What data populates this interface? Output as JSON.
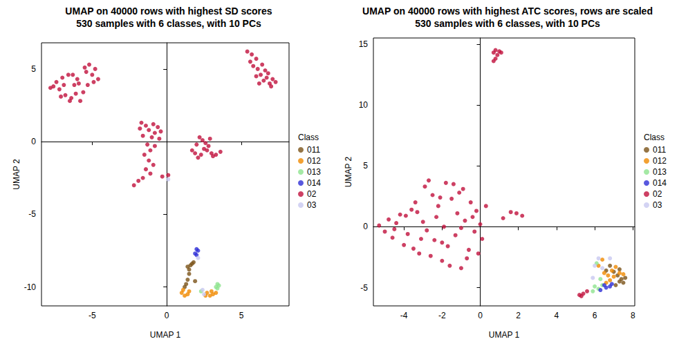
{
  "chart_data": [
    {
      "type": "scatter",
      "title": "UMAP on 40000 rows with highest SD scores",
      "subtitle": "530 samples with 6 classes, with 10 PCs",
      "x_label": "UMAP 1",
      "y_label": "UMAP 2",
      "legend_title": "Class",
      "legend": "right",
      "grid": false,
      "marker": "circle",
      "xlim": [
        -8.4,
        8.2
      ],
      "xticks": [
        -5,
        0,
        5
      ],
      "ylim": [
        -11.3,
        6.8
      ],
      "yticks": [
        -10,
        -5,
        0,
        5
      ],
      "series": [
        {
          "name": "011",
          "color": "#7a5218",
          "values": [
            [
              1.4,
              -8.6
            ],
            [
              1.5,
              -8.8
            ],
            [
              1.6,
              -8.5
            ],
            [
              1.5,
              -9.1
            ],
            [
              1.4,
              -9.5
            ],
            [
              1.3,
              -9.8
            ],
            [
              1.2,
              -10.0
            ],
            [
              1.7,
              -8.4
            ],
            [
              1.9,
              -9.6
            ],
            [
              1.8,
              -8.3
            ]
          ]
        },
        {
          "name": "012",
          "color": "#f08a00",
          "values": [
            [
              1.0,
              -10.4
            ],
            [
              1.2,
              -10.6
            ],
            [
              1.4,
              -10.5
            ],
            [
              1.1,
              -10.2
            ],
            [
              2.7,
              -10.4
            ],
            [
              2.9,
              -10.6
            ],
            [
              3.1,
              -10.5
            ],
            [
              3.3,
              -10.4
            ],
            [
              2.6,
              -10.6
            ],
            [
              3.0,
              -10.3
            ],
            [
              1.5,
              -10.3
            ]
          ]
        },
        {
          "name": "013",
          "color": "#8fe38f",
          "values": [
            [
              3.4,
              -9.8
            ],
            [
              3.5,
              -9.9
            ],
            [
              3.3,
              -10.0
            ],
            [
              2.3,
              -10.3
            ],
            [
              3.4,
              -10.1
            ]
          ]
        },
        {
          "name": "014",
          "color": "#2e2ed6",
          "values": [
            [
              2.0,
              -7.4
            ],
            [
              2.1,
              -7.5
            ],
            [
              1.9,
              -7.7
            ],
            [
              2.0,
              -7.8
            ]
          ]
        },
        {
          "name": "02",
          "color": "#c0103c",
          "values": [
            [
              -7.6,
              3.8
            ],
            [
              -7.4,
              4.1
            ],
            [
              -7.2,
              3.6
            ],
            [
              -7.0,
              4.4
            ],
            [
              -6.8,
              3.2
            ],
            [
              -6.6,
              4.6
            ],
            [
              -6.4,
              3.0
            ],
            [
              -6.2,
              3.9
            ],
            [
              -6.0,
              4.3
            ],
            [
              -5.8,
              2.8
            ],
            [
              -5.6,
              3.4
            ],
            [
              -5.4,
              4.8
            ],
            [
              -5.2,
              5.3
            ],
            [
              -5.0,
              4.6
            ],
            [
              -4.8,
              5.0
            ],
            [
              -4.6,
              4.3
            ],
            [
              -5.9,
              4.0
            ],
            [
              -6.9,
              3.9
            ],
            [
              -7.8,
              3.7
            ],
            [
              -6.5,
              2.8
            ],
            [
              -5.3,
              3.9
            ],
            [
              -4.9,
              4.1
            ],
            [
              -6.3,
              4.6
            ],
            [
              -7.1,
              3.1
            ],
            [
              -5.5,
              5.1
            ],
            [
              -6.1,
              3.3
            ],
            [
              5.4,
              6.2
            ],
            [
              5.7,
              6.0
            ],
            [
              6.0,
              5.7
            ],
            [
              5.8,
              5.2
            ],
            [
              6.1,
              5.0
            ],
            [
              6.3,
              4.6
            ],
            [
              6.5,
              4.2
            ],
            [
              6.7,
              4.4
            ],
            [
              6.9,
              4.0
            ],
            [
              7.1,
              4.3
            ],
            [
              7.3,
              4.1
            ],
            [
              6.4,
              5.3
            ],
            [
              6.6,
              4.9
            ],
            [
              6.2,
              4.0
            ],
            [
              5.6,
              5.5
            ],
            [
              6.8,
              4.7
            ],
            [
              7.0,
              3.8
            ],
            [
              6.0,
              4.5
            ],
            [
              -1.7,
              1.3
            ],
            [
              -1.4,
              1.1
            ],
            [
              -1.2,
              0.8
            ],
            [
              -0.9,
              1.2
            ],
            [
              -0.6,
              1.0
            ],
            [
              -0.4,
              0.7
            ],
            [
              -1.6,
              0.4
            ],
            [
              -1.0,
              0.3
            ],
            [
              -0.5,
              0.2
            ],
            [
              -1.3,
              -0.2
            ],
            [
              -1.1,
              -0.6
            ],
            [
              -0.8,
              -0.3
            ],
            [
              -1.5,
              -0.9
            ],
            [
              -1.2,
              -1.3
            ],
            [
              -0.9,
              -1.6
            ],
            [
              -1.4,
              -1.9
            ],
            [
              -1.1,
              -2.2
            ],
            [
              -1.6,
              -2.5
            ],
            [
              -2.2,
              -3.0
            ],
            [
              -1.9,
              -2.7
            ],
            [
              -0.3,
              -2.4
            ],
            [
              0.1,
              -2.3
            ],
            [
              -0.8,
              0.6
            ],
            [
              -1.8,
              0.9
            ],
            [
              1.7,
              -0.6
            ],
            [
              2.0,
              -0.2
            ],
            [
              2.2,
              0.3
            ],
            [
              2.4,
              0.1
            ],
            [
              2.6,
              -0.1
            ],
            [
              2.5,
              -0.5
            ],
            [
              2.8,
              -0.3
            ],
            [
              3.0,
              -0.8
            ],
            [
              3.3,
              -0.9
            ],
            [
              3.6,
              -0.7
            ],
            [
              2.3,
              -0.9
            ],
            [
              2.1,
              -1.1
            ],
            [
              2.9,
              0.2
            ],
            [
              1.9,
              -0.8
            ],
            [
              2.7,
              -0.6
            ],
            [
              3.1,
              -1.0
            ]
          ]
        },
        {
          "name": "03",
          "color": "#c8c8f0",
          "values": [
            [
              2.1,
              -8.0
            ],
            [
              0.1,
              -2.6
            ],
            [
              2.4,
              -10.2
            ],
            [
              2.5,
              -10.5
            ]
          ]
        }
      ]
    },
    {
      "type": "scatter",
      "title": "UMAP on 40000 rows with highest ATC scores, rows are scaled",
      "subtitle": "530 samples with 6 classes, with 10 PCs",
      "x_label": "UMAP 1",
      "y_label": "UMAP 2",
      "legend_title": "Class",
      "legend": "right",
      "grid": false,
      "marker": "circle",
      "xlim": [
        -5.6,
        8.1
      ],
      "xticks": [
        -4,
        -2,
        0,
        2,
        4,
        6,
        8
      ],
      "ylim": [
        -6.5,
        15.5
      ],
      "yticks": [
        -5,
        0,
        5,
        10,
        15
      ],
      "series": [
        {
          "name": "011",
          "color": "#7a5218",
          "values": [
            [
              7.2,
              -4.0
            ],
            [
              7.4,
              -4.3
            ],
            [
              7.5,
              -4.6
            ],
            [
              7.3,
              -4.5
            ],
            [
              7.0,
              -3.7
            ],
            [
              6.8,
              -3.2
            ],
            [
              7.6,
              -4.2
            ],
            [
              7.1,
              -4.8
            ],
            [
              6.6,
              -3.6
            ],
            [
              7.3,
              -3.5
            ]
          ]
        },
        {
          "name": "012",
          "color": "#f08a00",
          "values": [
            [
              6.5,
              -3.8
            ],
            [
              6.7,
              -4.0
            ],
            [
              6.9,
              -3.6
            ],
            [
              7.1,
              -3.3
            ],
            [
              7.3,
              -3.8
            ],
            [
              6.4,
              -2.7
            ],
            [
              6.2,
              -3.2
            ],
            [
              6.8,
              -4.4
            ],
            [
              7.5,
              -3.9
            ],
            [
              6.6,
              -4.6
            ],
            [
              7.0,
              -4.1
            ]
          ]
        },
        {
          "name": "013",
          "color": "#8fe38f",
          "values": [
            [
              6.0,
              -4.9
            ],
            [
              6.2,
              -5.1
            ],
            [
              5.9,
              -5.3
            ],
            [
              6.3,
              -4.3
            ],
            [
              6.1,
              -3.0
            ],
            [
              6.4,
              -4.8
            ]
          ]
        },
        {
          "name": "014",
          "color": "#2e2ed6",
          "values": [
            [
              6.5,
              -4.8
            ],
            [
              6.8,
              -4.9
            ],
            [
              6.6,
              -5.0
            ],
            [
              6.9,
              -4.7
            ],
            [
              6.3,
              -5.2
            ]
          ]
        },
        {
          "name": "02",
          "color": "#c0103c",
          "values": [
            [
              -5.3,
              0.1
            ],
            [
              -5.0,
              -0.4
            ],
            [
              -4.8,
              0.6
            ],
            [
              -4.6,
              -0.9
            ],
            [
              -4.4,
              0.3
            ],
            [
              -4.2,
              1.0
            ],
            [
              -4.0,
              -1.5
            ],
            [
              -3.8,
              -0.6
            ],
            [
              -3.6,
              1.4
            ],
            [
              -3.4,
              2.0
            ],
            [
              -3.2,
              -2.2
            ],
            [
              -3.0,
              0.4
            ],
            [
              -2.9,
              3.3
            ],
            [
              -2.7,
              3.8
            ],
            [
              -2.5,
              2.6
            ],
            [
              -2.4,
              -1.1
            ],
            [
              -2.2,
              1.7
            ],
            [
              -2.0,
              -2.8
            ],
            [
              -1.9,
              0.0
            ],
            [
              -1.8,
              3.6
            ],
            [
              -1.6,
              -3.2
            ],
            [
              -1.5,
              2.3
            ],
            [
              -1.3,
              -0.7
            ],
            [
              -1.2,
              1.1
            ],
            [
              -1.0,
              -3.4
            ],
            [
              -0.9,
              3.1
            ],
            [
              -0.8,
              0.5
            ],
            [
              -0.6,
              -1.9
            ],
            [
              -0.5,
              2.0
            ],
            [
              -0.3,
              -0.4
            ],
            [
              -0.2,
              1.3
            ],
            [
              0.0,
              0.2
            ],
            [
              0.1,
              -1.0
            ],
            [
              0.3,
              1.7
            ],
            [
              -3.5,
              -1.8
            ],
            [
              -2.8,
              -0.3
            ],
            [
              -2.3,
              0.8
            ],
            [
              -1.7,
              -1.6
            ],
            [
              -1.1,
              2.8
            ],
            [
              -0.7,
              -2.6
            ],
            [
              -4.5,
              -0.2
            ],
            [
              -3.9,
              0.9
            ],
            [
              -2.6,
              -2.4
            ],
            [
              -1.4,
              3.5
            ],
            [
              -0.4,
              0.8
            ],
            [
              -2.1,
              2.4
            ],
            [
              -3.3,
              1.2
            ],
            [
              1.2,
              0.7
            ],
            [
              1.6,
              1.2
            ],
            [
              1.9,
              1.1
            ],
            [
              2.2,
              0.9
            ],
            [
              -1.0,
              -0.1
            ],
            [
              -2.0,
              -1.3
            ],
            [
              -0.1,
              -2.2
            ],
            [
              -3.1,
              -1.0
            ],
            [
              0.7,
              14.3
            ],
            [
              0.8,
              14.5
            ],
            [
              1.0,
              14.4
            ],
            [
              1.1,
              14.3
            ],
            [
              0.8,
              13.8
            ],
            [
              0.7,
              13.6
            ],
            [
              0.9,
              14.1
            ],
            [
              5.2,
              -5.6
            ],
            [
              5.4,
              -5.5
            ],
            [
              5.6,
              -5.3
            ],
            [
              5.3,
              -5.7
            ]
          ]
        },
        {
          "name": "03",
          "color": "#c8c8f0",
          "values": [
            [
              6.0,
              -3.2
            ],
            [
              6.2,
              -2.6
            ],
            [
              6.8,
              -2.6
            ],
            [
              5.9,
              -4.2
            ],
            [
              6.4,
              -3.4
            ]
          ]
        }
      ]
    }
  ]
}
